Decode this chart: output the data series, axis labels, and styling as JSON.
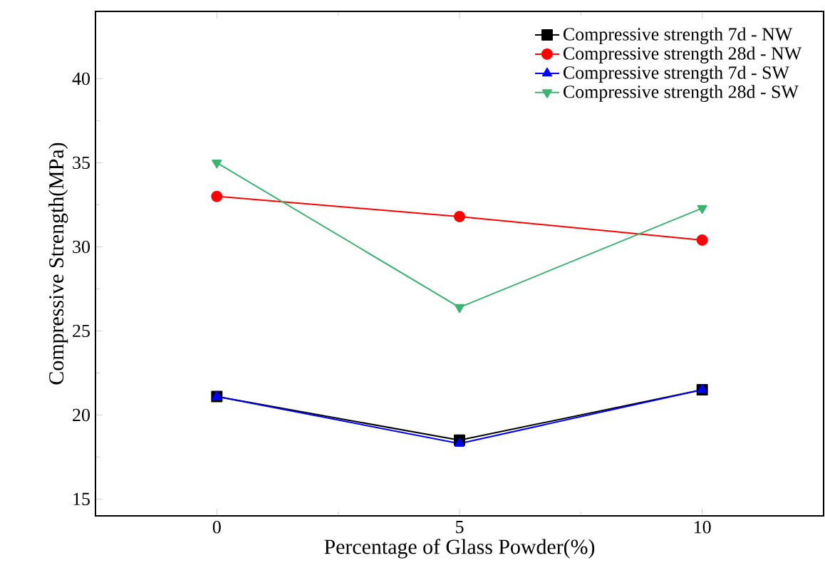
{
  "chart_data": {
    "type": "line",
    "xlabel": "Percentage of Glass Powder(%)",
    "ylabel": "Compressive Strength(MPa)",
    "x": [
      0,
      5,
      10
    ],
    "xlim": [
      -2.5,
      12.5
    ],
    "xticks": [
      0,
      5,
      10
    ],
    "ylim": [
      14,
      44
    ],
    "yticks": [
      15,
      20,
      25,
      30,
      35,
      40
    ],
    "legend": "top right",
    "grid": false,
    "series": [
      {
        "name": "Compressive strength 7d - NW",
        "color": "#000000",
        "marker": "square",
        "values": [
          21.1,
          18.5,
          21.5
        ]
      },
      {
        "name": "Compressive strength 28d - NW",
        "color": "#ff0000",
        "marker": "circle",
        "values": [
          33.0,
          31.8,
          30.4
        ]
      },
      {
        "name": "Compressive strength 7d - SW",
        "color": "#0000ff",
        "marker": "triangle",
        "values": [
          21.1,
          18.3,
          21.5
        ]
      },
      {
        "name": "Compressive strength 28d - SW",
        "color": "#3cb371",
        "marker": "triangle down",
        "values": [
          35.0,
          26.4,
          32.3
        ]
      }
    ]
  }
}
